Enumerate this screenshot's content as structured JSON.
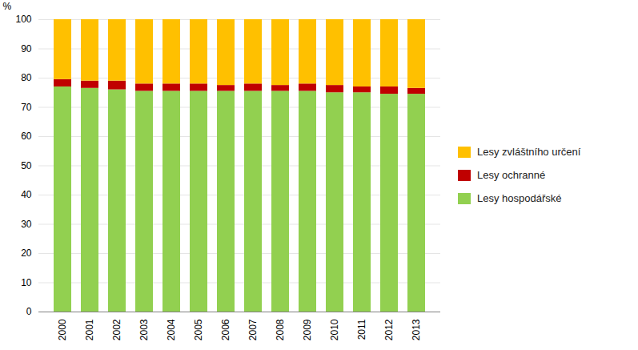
{
  "chart_data": {
    "type": "bar",
    "stacked": true,
    "categories": [
      "2000",
      "2001",
      "2002",
      "2003",
      "2004",
      "2005",
      "2006",
      "2007",
      "2008",
      "2009",
      "2010",
      "2011",
      "2012",
      "2013"
    ],
    "series": [
      {
        "name": "Lesy hospodářské",
        "color": "#92D050",
        "values": [
          77.0,
          76.5,
          76.0,
          75.5,
          75.5,
          75.5,
          75.5,
          75.5,
          75.5,
          75.5,
          75.0,
          75.0,
          74.5,
          74.5
        ]
      },
      {
        "name": "Lesy ochranné",
        "color": "#C00000",
        "values": [
          2.5,
          2.5,
          3.0,
          2.5,
          2.5,
          2.5,
          2.0,
          2.5,
          2.0,
          2.5,
          2.5,
          2.0,
          2.5,
          2.0
        ]
      },
      {
        "name": "Lesy zvláštního určení",
        "color": "#FFC000",
        "values": [
          20.5,
          21.0,
          21.0,
          22.0,
          22.0,
          22.0,
          22.5,
          22.0,
          22.5,
          22.0,
          22.5,
          23.0,
          23.0,
          23.5
        ]
      }
    ],
    "ylabel": "%",
    "ylim": [
      0,
      100
    ],
    "yticks": [
      0,
      10,
      20,
      30,
      40,
      50,
      60,
      70,
      80,
      90,
      100
    ],
    "grid": true,
    "legend": "right"
  }
}
